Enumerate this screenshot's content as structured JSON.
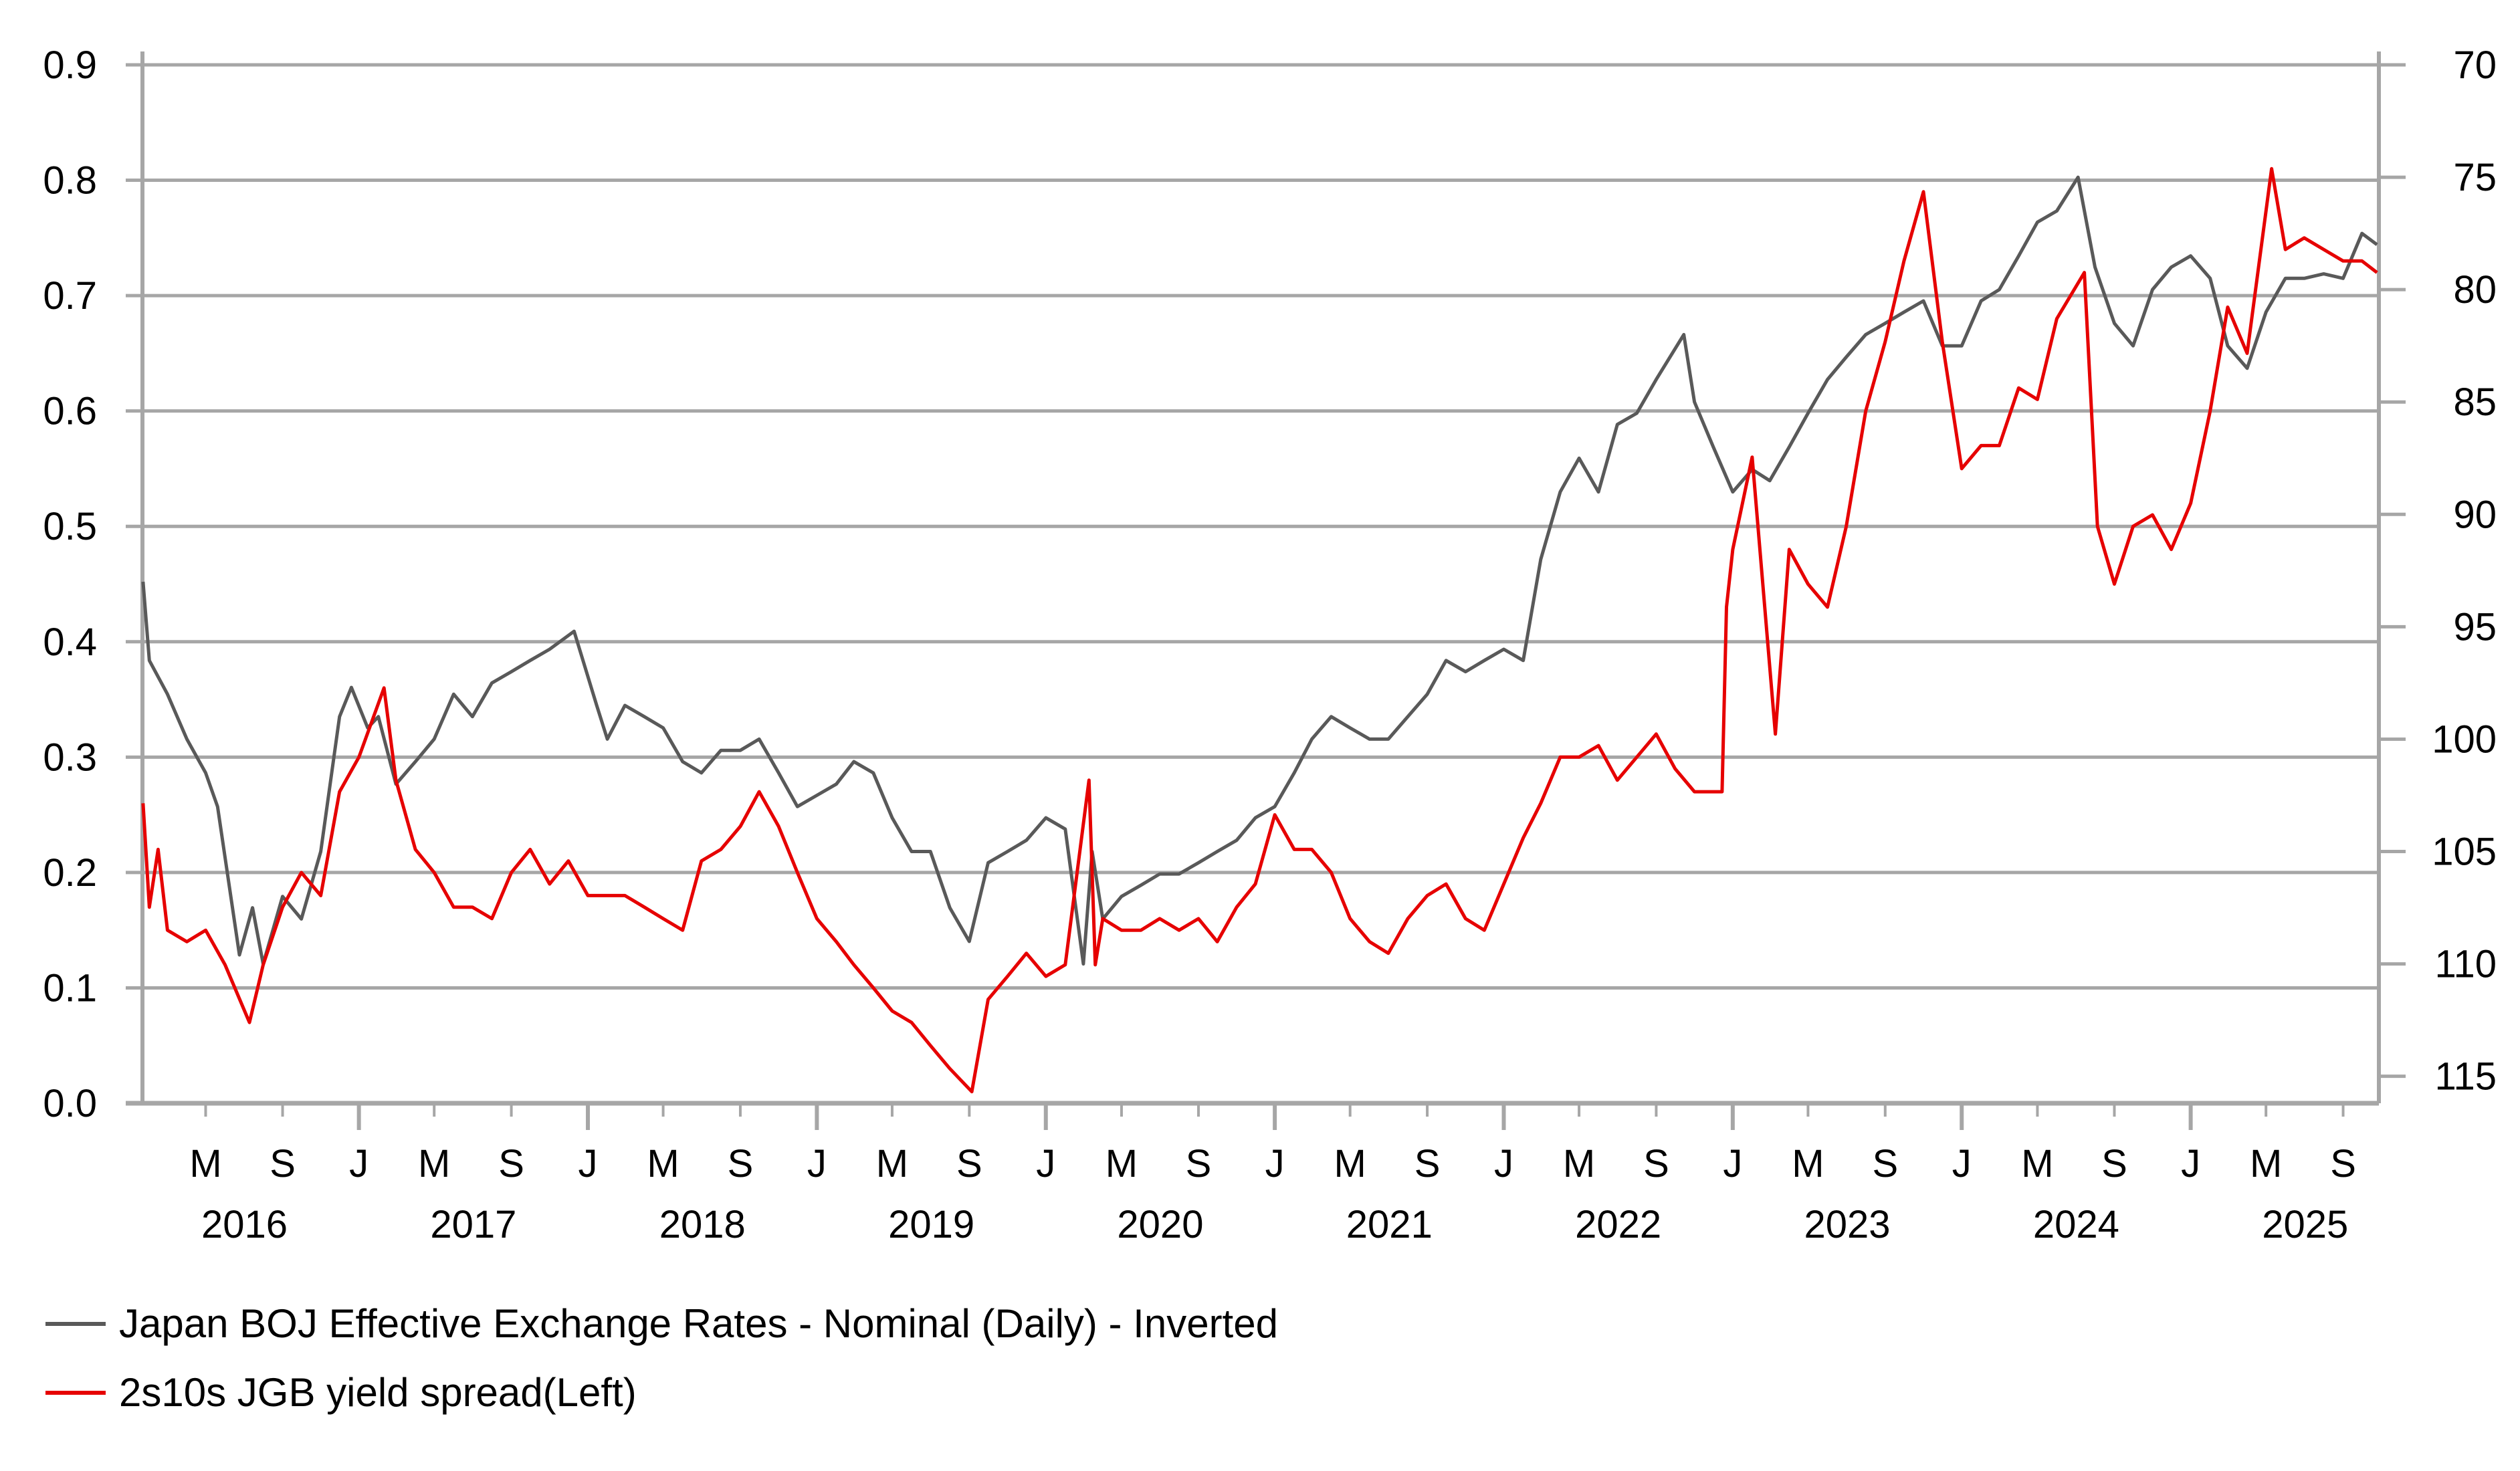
{
  "chart_data": {
    "type": "line",
    "title": "",
    "grid": true,
    "legend_position": "bottom-left",
    "left_axis": {
      "ylim": [
        0.0,
        0.9
      ],
      "ticks": [
        "0.0",
        "0.1",
        "0.2",
        "0.3",
        "0.4",
        "0.5",
        "0.6",
        "0.7",
        "0.8",
        "0.9"
      ]
    },
    "right_axis": {
      "inverted": true,
      "ylim": [
        70,
        116.2
      ],
      "ticks": [
        "70",
        "75",
        "80",
        "85",
        "90",
        "95",
        "100",
        "105",
        "110",
        "115"
      ]
    },
    "xlim": [
      "2016-01-21",
      "2025-10-28"
    ],
    "x_ticks": [
      {
        "label": "M",
        "date": "2016-05-01"
      },
      {
        "label": "S",
        "date": "2016-09-01"
      },
      {
        "label": "J",
        "date": "2017-01-01"
      },
      {
        "label": "M",
        "date": "2017-05-01"
      },
      {
        "label": "S",
        "date": "2017-09-01"
      },
      {
        "label": "J",
        "date": "2018-01-01"
      },
      {
        "label": "M",
        "date": "2018-05-01"
      },
      {
        "label": "S",
        "date": "2018-09-01"
      },
      {
        "label": "J",
        "date": "2019-01-01"
      },
      {
        "label": "M",
        "date": "2019-05-01"
      },
      {
        "label": "S",
        "date": "2019-09-01"
      },
      {
        "label": "J",
        "date": "2020-01-01"
      },
      {
        "label": "M",
        "date": "2020-05-01"
      },
      {
        "label": "S",
        "date": "2020-09-01"
      },
      {
        "label": "J",
        "date": "2021-01-01"
      },
      {
        "label": "M",
        "date": "2021-05-01"
      },
      {
        "label": "S",
        "date": "2021-09-01"
      },
      {
        "label": "J",
        "date": "2022-01-01"
      },
      {
        "label": "M",
        "date": "2022-05-01"
      },
      {
        "label": "S",
        "date": "2022-09-01"
      },
      {
        "label": "J",
        "date": "2023-01-01"
      },
      {
        "label": "M",
        "date": "2023-05-01"
      },
      {
        "label": "S",
        "date": "2023-09-01"
      },
      {
        "label": "J",
        "date": "2024-01-01"
      },
      {
        "label": "M",
        "date": "2024-05-01"
      },
      {
        "label": "S",
        "date": "2024-09-01"
      },
      {
        "label": "J",
        "date": "2025-01-01"
      },
      {
        "label": "M",
        "date": "2025-05-01"
      },
      {
        "label": "S",
        "date": "2025-09-01"
      }
    ],
    "year_labels": [
      "2016",
      "2017",
      "2018",
      "2019",
      "2020",
      "2021",
      "2022",
      "2023",
      "2024",
      "2025"
    ],
    "series": [
      {
        "name": "Japan BOJ Effective Exchange Rates - Nominal (Daily) - Inverted",
        "axis": "right",
        "color": "#595959",
        "points": [
          [
            "2016-01-22",
            93.0
          ],
          [
            "2016-02-01",
            96.5
          ],
          [
            "2016-03-01",
            98.0
          ],
          [
            "2016-04-01",
            100.0
          ],
          [
            "2016-05-01",
            101.5
          ],
          [
            "2016-05-20",
            103.0
          ],
          [
            "2016-06-24",
            109.6
          ],
          [
            "2016-07-15",
            107.5
          ],
          [
            "2016-08-01",
            110.0
          ],
          [
            "2016-09-01",
            107.0
          ],
          [
            "2016-10-01",
            108.0
          ],
          [
            "2016-11-01",
            105.0
          ],
          [
            "2016-12-01",
            99.0
          ],
          [
            "2016-12-20",
            97.7
          ],
          [
            "2017-01-15",
            99.5
          ],
          [
            "2017-02-01",
            99.0
          ],
          [
            "2017-03-01",
            102.0
          ],
          [
            "2017-04-01",
            101.0
          ],
          [
            "2017-05-01",
            100.0
          ],
          [
            "2017-06-01",
            98.0
          ],
          [
            "2017-07-01",
            99.0
          ],
          [
            "2017-08-01",
            97.5
          ],
          [
            "2017-09-01",
            97.0
          ],
          [
            "2017-10-01",
            96.5
          ],
          [
            "2017-11-01",
            96.0
          ],
          [
            "2017-12-10",
            95.2
          ],
          [
            "2018-01-15",
            98.5
          ],
          [
            "2018-02-01",
            100.0
          ],
          [
            "2018-03-01",
            98.5
          ],
          [
            "2018-04-01",
            99.0
          ],
          [
            "2018-05-01",
            99.5
          ],
          [
            "2018-06-01",
            101.0
          ],
          [
            "2018-07-01",
            101.5
          ],
          [
            "2018-08-01",
            100.5
          ],
          [
            "2018-09-01",
            100.5
          ],
          [
            "2018-10-01",
            100.0
          ],
          [
            "2018-11-01",
            101.5
          ],
          [
            "2018-12-01",
            103.0
          ],
          [
            "2019-01-01",
            102.5
          ],
          [
            "2019-02-01",
            102.0
          ],
          [
            "2019-03-01",
            101.0
          ],
          [
            "2019-04-01",
            101.5
          ],
          [
            "2019-05-01",
            103.5
          ],
          [
            "2019-06-01",
            105.0
          ],
          [
            "2019-07-01",
            105.0
          ],
          [
            "2019-08-01",
            107.5
          ],
          [
            "2019-09-01",
            109.0
          ],
          [
            "2019-10-01",
            105.5
          ],
          [
            "2019-11-01",
            105.0
          ],
          [
            "2019-12-01",
            104.5
          ],
          [
            "2020-01-01",
            103.5
          ],
          [
            "2020-02-01",
            104.0
          ],
          [
            "2020-03-01",
            110.0
          ],
          [
            "2020-03-15",
            105.0
          ],
          [
            "2020-04-01",
            108.0
          ],
          [
            "2020-05-01",
            107.0
          ],
          [
            "2020-06-01",
            106.5
          ],
          [
            "2020-07-01",
            106.0
          ],
          [
            "2020-08-01",
            106.0
          ],
          [
            "2020-09-01",
            105.5
          ],
          [
            "2020-10-01",
            105.0
          ],
          [
            "2020-11-01",
            104.5
          ],
          [
            "2020-12-01",
            103.5
          ],
          [
            "2021-01-01",
            103.0
          ],
          [
            "2021-02-01",
            101.5
          ],
          [
            "2021-03-01",
            100.0
          ],
          [
            "2021-04-01",
            99.0
          ],
          [
            "2021-05-01",
            99.5
          ],
          [
            "2021-06-01",
            100.0
          ],
          [
            "2021-07-01",
            100.0
          ],
          [
            "2021-08-01",
            99.0
          ],
          [
            "2021-09-01",
            98.0
          ],
          [
            "2021-10-01",
            96.5
          ],
          [
            "2021-11-01",
            97.0
          ],
          [
            "2021-12-01",
            96.5
          ],
          [
            "2022-01-01",
            96.0
          ],
          [
            "2022-02-01",
            96.5
          ],
          [
            "2022-03-01",
            92.0
          ],
          [
            "2022-04-01",
            89.0
          ],
          [
            "2022-05-01",
            87.5
          ],
          [
            "2022-06-01",
            89.0
          ],
          [
            "2022-07-01",
            86.0
          ],
          [
            "2022-08-01",
            85.5
          ],
          [
            "2022-09-01",
            84.0
          ],
          [
            "2022-10-15",
            82.0
          ],
          [
            "2022-11-01",
            85.0
          ],
          [
            "2022-12-01",
            87.0
          ],
          [
            "2023-01-01",
            89.0
          ],
          [
            "2023-02-01",
            88.0
          ],
          [
            "2023-03-01",
            88.5
          ],
          [
            "2023-04-01",
            87.0
          ],
          [
            "2023-05-01",
            85.5
          ],
          [
            "2023-06-01",
            84.0
          ],
          [
            "2023-07-01",
            83.0
          ],
          [
            "2023-08-01",
            82.0
          ],
          [
            "2023-09-01",
            81.5
          ],
          [
            "2023-10-01",
            81.0
          ],
          [
            "2023-11-01",
            80.5
          ],
          [
            "2023-12-01",
            82.5
          ],
          [
            "2024-01-01",
            82.5
          ],
          [
            "2024-02-01",
            80.5
          ],
          [
            "2024-03-01",
            80.0
          ],
          [
            "2024-04-01",
            78.5
          ],
          [
            "2024-05-01",
            77.0
          ],
          [
            "2024-06-01",
            76.5
          ],
          [
            "2024-07-05",
            75.0
          ],
          [
            "2024-08-01",
            79.0
          ],
          [
            "2024-09-01",
            81.5
          ],
          [
            "2024-10-01",
            82.5
          ],
          [
            "2024-11-01",
            80.0
          ],
          [
            "2024-12-01",
            79.0
          ],
          [
            "2025-01-01",
            78.5
          ],
          [
            "2025-02-01",
            79.5
          ],
          [
            "2025-03-01",
            82.5
          ],
          [
            "2025-04-01",
            83.5
          ],
          [
            "2025-05-01",
            81.0
          ],
          [
            "2025-06-01",
            79.5
          ],
          [
            "2025-07-01",
            79.5
          ],
          [
            "2025-08-01",
            79.3
          ],
          [
            "2025-09-01",
            79.5
          ],
          [
            "2025-10-01",
            77.5
          ],
          [
            "2025-10-25",
            78.0
          ]
        ]
      },
      {
        "name": "2s10s JGB yield spread(Left)",
        "axis": "left",
        "color": "#e60000",
        "points": [
          [
            "2016-01-22",
            0.26
          ],
          [
            "2016-02-01",
            0.17
          ],
          [
            "2016-02-15",
            0.22
          ],
          [
            "2016-03-01",
            0.15
          ],
          [
            "2016-04-01",
            0.14
          ],
          [
            "2016-05-01",
            0.15
          ],
          [
            "2016-06-01",
            0.12
          ],
          [
            "2016-07-10",
            0.07
          ],
          [
            "2016-08-01",
            0.12
          ],
          [
            "2016-09-01",
            0.17
          ],
          [
            "2016-10-01",
            0.2
          ],
          [
            "2016-11-01",
            0.18
          ],
          [
            "2016-12-01",
            0.27
          ],
          [
            "2017-01-01",
            0.3
          ],
          [
            "2017-02-10",
            0.36
          ],
          [
            "2017-03-01",
            0.28
          ],
          [
            "2017-04-01",
            0.22
          ],
          [
            "2017-05-01",
            0.2
          ],
          [
            "2017-06-01",
            0.17
          ],
          [
            "2017-07-01",
            0.17
          ],
          [
            "2017-08-01",
            0.16
          ],
          [
            "2017-09-01",
            0.2
          ],
          [
            "2017-10-01",
            0.22
          ],
          [
            "2017-11-01",
            0.19
          ],
          [
            "2017-12-01",
            0.21
          ],
          [
            "2018-01-01",
            0.18
          ],
          [
            "2018-02-01",
            0.18
          ],
          [
            "2018-03-01",
            0.18
          ],
          [
            "2018-04-01",
            0.17
          ],
          [
            "2018-05-01",
            0.16
          ],
          [
            "2018-06-01",
            0.15
          ],
          [
            "2018-07-01",
            0.21
          ],
          [
            "2018-08-01",
            0.22
          ],
          [
            "2018-09-01",
            0.24
          ],
          [
            "2018-10-01",
            0.27
          ],
          [
            "2018-11-01",
            0.24
          ],
          [
            "2018-12-01",
            0.2
          ],
          [
            "2019-01-01",
            0.16
          ],
          [
            "2019-02-01",
            0.14
          ],
          [
            "2019-03-01",
            0.12
          ],
          [
            "2019-04-01",
            0.1
          ],
          [
            "2019-05-01",
            0.08
          ],
          [
            "2019-06-01",
            0.07
          ],
          [
            "2019-07-01",
            0.05
          ],
          [
            "2019-08-01",
            0.03
          ],
          [
            "2019-09-05",
            0.01
          ],
          [
            "2019-10-01",
            0.09
          ],
          [
            "2019-11-01",
            0.11
          ],
          [
            "2019-12-01",
            0.13
          ],
          [
            "2020-01-01",
            0.11
          ],
          [
            "2020-02-01",
            0.12
          ],
          [
            "2020-03-10",
            0.28
          ],
          [
            "2020-03-20",
            0.12
          ],
          [
            "2020-04-01",
            0.16
          ],
          [
            "2020-05-01",
            0.15
          ],
          [
            "2020-06-01",
            0.15
          ],
          [
            "2020-07-01",
            0.16
          ],
          [
            "2020-08-01",
            0.15
          ],
          [
            "2020-09-01",
            0.16
          ],
          [
            "2020-10-01",
            0.14
          ],
          [
            "2020-11-01",
            0.17
          ],
          [
            "2020-12-01",
            0.19
          ],
          [
            "2021-01-01",
            0.25
          ],
          [
            "2021-02-01",
            0.22
          ],
          [
            "2021-03-01",
            0.22
          ],
          [
            "2021-04-01",
            0.2
          ],
          [
            "2021-05-01",
            0.16
          ],
          [
            "2021-06-01",
            0.14
          ],
          [
            "2021-07-01",
            0.13
          ],
          [
            "2021-08-01",
            0.16
          ],
          [
            "2021-09-01",
            0.18
          ],
          [
            "2021-10-01",
            0.19
          ],
          [
            "2021-11-01",
            0.16
          ],
          [
            "2021-12-01",
            0.15
          ],
          [
            "2022-01-01",
            0.19
          ],
          [
            "2022-02-01",
            0.23
          ],
          [
            "2022-03-01",
            0.26
          ],
          [
            "2022-04-01",
            0.3
          ],
          [
            "2022-05-01",
            0.3
          ],
          [
            "2022-06-01",
            0.31
          ],
          [
            "2022-07-01",
            0.28
          ],
          [
            "2022-08-01",
            0.3
          ],
          [
            "2022-09-01",
            0.32
          ],
          [
            "2022-10-01",
            0.29
          ],
          [
            "2022-11-01",
            0.27
          ],
          [
            "2022-12-15",
            0.27
          ],
          [
            "2022-12-22",
            0.43
          ],
          [
            "2023-01-01",
            0.48
          ],
          [
            "2023-02-01",
            0.56
          ],
          [
            "2023-03-10",
            0.32
          ],
          [
            "2023-04-01",
            0.48
          ],
          [
            "2023-05-01",
            0.45
          ],
          [
            "2023-06-01",
            0.43
          ],
          [
            "2023-07-01",
            0.5
          ],
          [
            "2023-08-01",
            0.6
          ],
          [
            "2023-09-01",
            0.66
          ],
          [
            "2023-10-01",
            0.73
          ],
          [
            "2023-11-01",
            0.79
          ],
          [
            "2023-12-01",
            0.66
          ],
          [
            "2024-01-01",
            0.55
          ],
          [
            "2024-02-01",
            0.57
          ],
          [
            "2024-03-01",
            0.57
          ],
          [
            "2024-04-01",
            0.62
          ],
          [
            "2024-05-01",
            0.61
          ],
          [
            "2024-06-01",
            0.68
          ],
          [
            "2024-07-15",
            0.72
          ],
          [
            "2024-08-05",
            0.5
          ],
          [
            "2024-09-01",
            0.45
          ],
          [
            "2024-10-01",
            0.5
          ],
          [
            "2024-11-01",
            0.51
          ],
          [
            "2024-12-01",
            0.48
          ],
          [
            "2025-01-01",
            0.52
          ],
          [
            "2025-02-01",
            0.6
          ],
          [
            "2025-03-01",
            0.69
          ],
          [
            "2025-04-01",
            0.65
          ],
          [
            "2025-05-10",
            0.81
          ],
          [
            "2025-06-01",
            0.74
          ],
          [
            "2025-07-01",
            0.75
          ],
          [
            "2025-08-01",
            0.74
          ],
          [
            "2025-09-01",
            0.73
          ],
          [
            "2025-10-01",
            0.73
          ],
          [
            "2025-10-25",
            0.72
          ]
        ]
      }
    ]
  }
}
